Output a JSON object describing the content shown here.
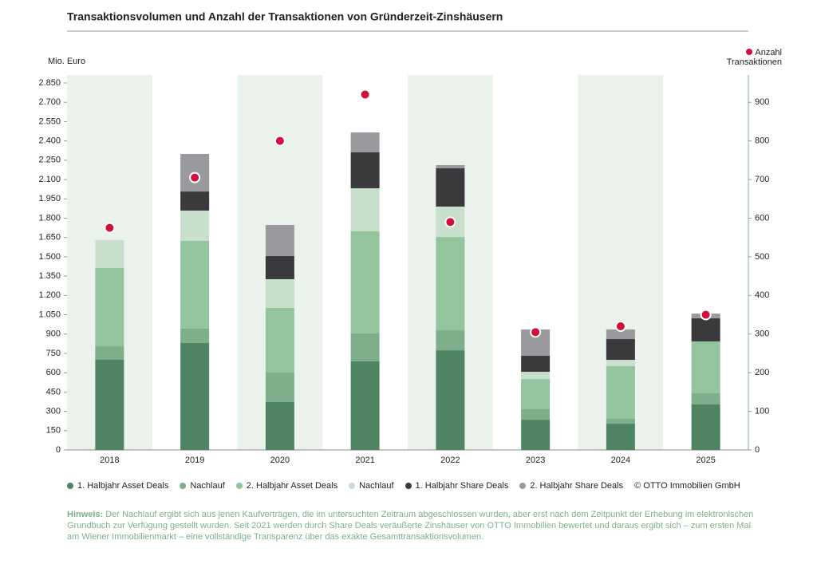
{
  "chart_data": {
    "type": "bar",
    "stacked": true,
    "title": "Transaktionsvolumen und Anzahl der Transaktionen von Gründerzeit-Zinshäusern",
    "y_label": "Mio. Euro",
    "categories": [
      "2018",
      "2019",
      "2020",
      "2021",
      "2022",
      "2023",
      "2024",
      "2025"
    ],
    "series": [
      {
        "name": "1. Halbjahr Asset Deals",
        "color": "#4e8462",
        "values": [
          700,
          830,
          372,
          688,
          774,
          235,
          204,
          353
        ]
      },
      {
        "name": "Nachlauf",
        "color": "#7fae8a",
        "values": [
          105,
          112,
          229,
          217,
          155,
          81,
          38,
          87
        ]
      },
      {
        "name": "2. Halbjahr Asset Deals",
        "color": "#93c49e",
        "values": [
          608,
          681,
          502,
          793,
          725,
          235,
          409,
          403
        ]
      },
      {
        "name": "Nachlauf",
        "color": "#c8dfcc",
        "values": [
          217,
          236,
          223,
          334,
          236,
          56,
          49,
          0
        ]
      },
      {
        "name": "1. Halbjahr Share Deals",
        "color": "#3a3a3c",
        "values": [
          0,
          148,
          180,
          279,
          297,
          124,
          161,
          179
        ]
      },
      {
        "name": "2. Halbjahr Share Deals",
        "color": "#9a9a9e",
        "values": [
          0,
          292,
          241,
          155,
          25,
          205,
          75,
          37
        ]
      },
      {
        "name": "Anzahl Transaktionen",
        "type": "scatter",
        "axis": "y2",
        "color": "#d0103a",
        "values": [
          575,
          705,
          800,
          920,
          590,
          305,
          320,
          350
        ]
      }
    ],
    "ylim": [
      0,
      2850
    ],
    "yticks": [
      0,
      150,
      300,
      450,
      600,
      750,
      900,
      {
        "value": 1050,
        "label": "1.050"
      },
      {
        "value": 1200,
        "label": "1.200"
      },
      {
        "value": 1350,
        "label": "1.350"
      },
      {
        "value": 1500,
        "label": "1.500"
      },
      {
        "value": 1650,
        "label": "1.650"
      },
      {
        "value": 1800,
        "label": "1.800"
      },
      {
        "value": 1950,
        "label": "1.950"
      },
      {
        "value": 2100,
        "label": "2.100"
      },
      {
        "value": 2250,
        "label": "2.250"
      },
      {
        "value": 2400,
        "label": "2.400"
      },
      {
        "value": 2550,
        "label": "2.550"
      },
      {
        "value": 2700,
        "label": "2.700"
      },
      {
        "value": 2850,
        "label": "2.850"
      }
    ],
    "y2lim": [
      0,
      950
    ],
    "y2ticks": [
      0,
      100,
      200,
      300,
      400,
      500,
      600,
      700,
      800,
      900
    ],
    "band_color": "#eaf2eb",
    "source": "© OTTO Immobilien GmbH",
    "note": {
      "label": "Hinweis:",
      "text": "Der Nachlauf ergibt sich aus jenen Kaufverträgen, die im untersuchten Zeitraum abgeschlossen wurden, aber erst nach dem Zeitpunkt der Erhebung im elektronischen Grundbuch zur Verfügung gestellt wurden. Seit 2021 werden durch Share Deals veräußerte Zinshäuser von OTTO Immobilien bewertet und daraus ergibt sich – zum ersten Mal am Wiener Immobilienmarkt – eine vollständige Transparenz über das exakte Gesamttransaktionsvolumen."
    }
  }
}
